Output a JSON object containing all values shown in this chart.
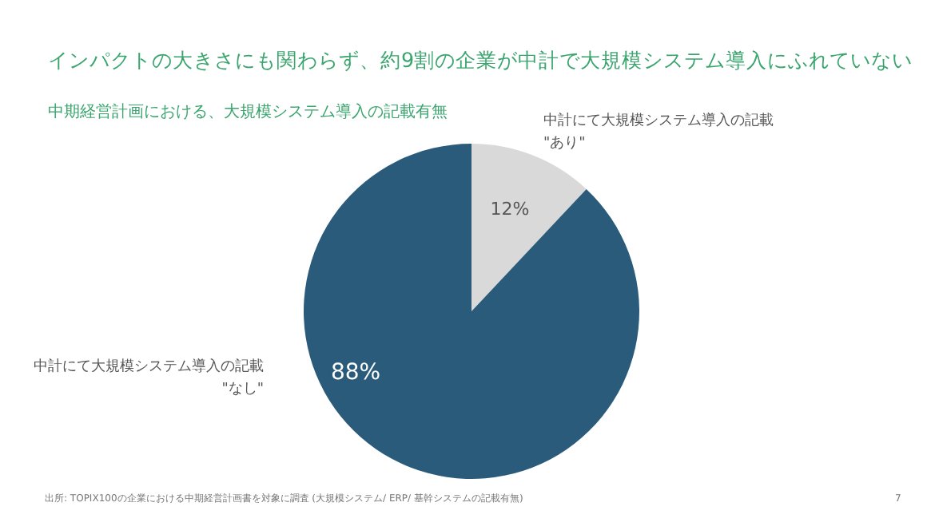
{
  "chart_data": {
    "type": "pie",
    "title": "インパクトの大きさにも関わらず、約9割の企業が中計で大規模システム導入にふれていない",
    "subtitle": "中期経営計画における、大規模システム導入の記載有無",
    "categories": [
      "中計にて大規模システム導入の記載\n\"あり\"",
      "中計にて大規模システム導入の記載\n\"なし\""
    ],
    "values": [
      12,
      88
    ],
    "colors": [
      "#d9d9d9",
      "#2b5b7b"
    ],
    "value_labels": [
      "12%",
      "88%"
    ],
    "annotations": [
      "出所: TOPIX100の企業における中期経営計画書を対象に調査 (大規模システム/ ERP/ 基幹システムの記載有無)",
      "7"
    ]
  }
}
